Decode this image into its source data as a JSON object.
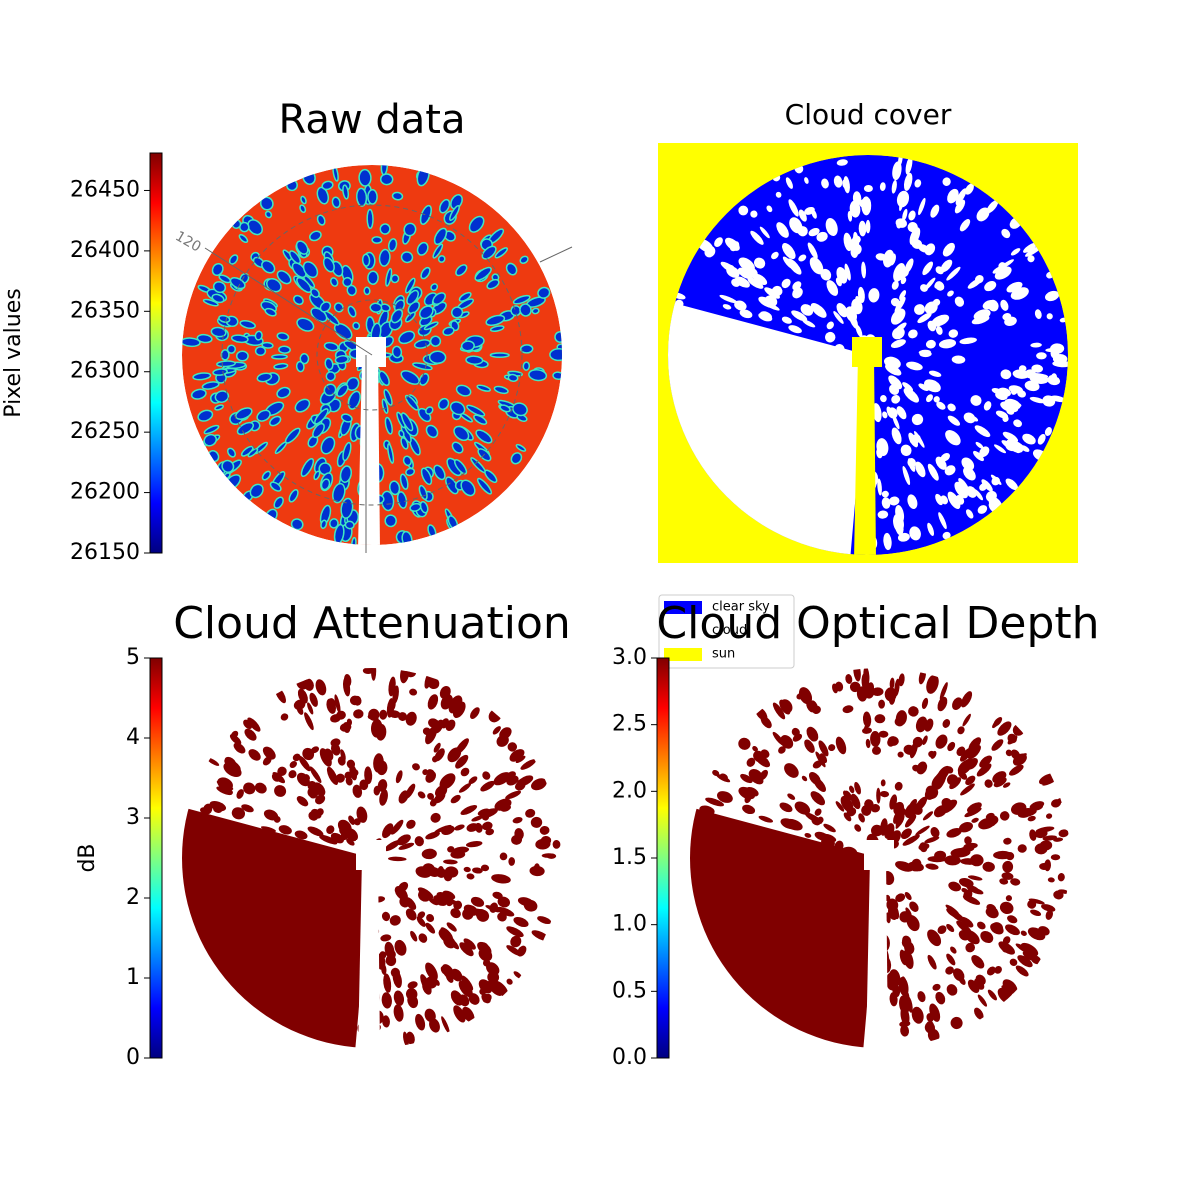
{
  "chart_data": [
    {
      "type": "image",
      "title": "Raw data",
      "colorbar_label": "Pixel values",
      "ylim": [
        26150,
        26481
      ],
      "yticks": [
        26150,
        26200,
        26250,
        26300,
        26350,
        26400,
        26450
      ],
      "annotation": "120"
    },
    {
      "type": "image",
      "title": "Cloud cover",
      "series": [
        {
          "name": "clear sky",
          "color": "#0000ff"
        },
        {
          "name": "cloud",
          "color": "#ffffff"
        },
        {
          "name": "sun",
          "color": "#ffff00"
        }
      ]
    },
    {
      "type": "image",
      "title": "Cloud Attenuation",
      "colorbar_label": "dB",
      "ylim": [
        0,
        5
      ],
      "yticks": [
        0,
        1,
        2,
        3,
        4,
        5
      ]
    },
    {
      "type": "image",
      "title": "Cloud Optical Depth",
      "ylim": [
        0,
        3
      ],
      "yticks": [
        {
          "value": 0,
          "label": "0.0"
        },
        0.5,
        {
          "value": 1,
          "label": "1.0"
        },
        1.5,
        {
          "value": 2,
          "label": "2.0"
        },
        2.5,
        {
          "value": 3,
          "label": "3.0"
        }
      ]
    }
  ]
}
